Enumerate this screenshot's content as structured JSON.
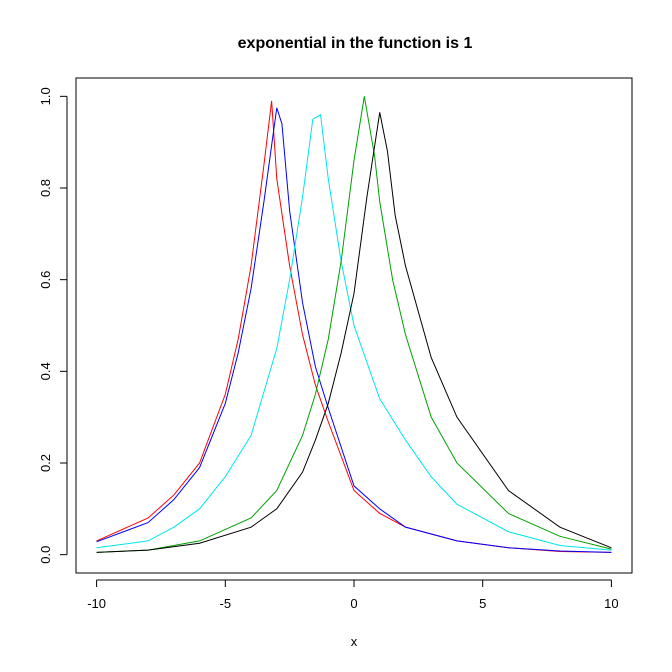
{
  "chart_data": {
    "type": "line",
    "title": "exponential in the function is 1",
    "xlabel": "x",
    "ylabel": "",
    "xlim": [
      -10.8,
      10.8
    ],
    "ylim": [
      -0.04,
      1.04
    ],
    "xticks": [
      -10,
      -5,
      0,
      5,
      10
    ],
    "xtick_labels": [
      "-10",
      "-5",
      "0",
      "5",
      "10"
    ],
    "yticks": [
      0.0,
      0.2,
      0.4,
      0.6,
      0.8,
      1.0
    ],
    "ytick_labels": [
      "0.0",
      "0.2",
      "0.4",
      "0.6",
      "0.8",
      "1.0"
    ],
    "grid": false,
    "legend": "none",
    "series": [
      {
        "color": "#ff0000",
        "x": [
          -10,
          -8,
          -7,
          -6,
          -5,
          -4.5,
          -4,
          -3.5,
          -3.2,
          -3,
          -2.5,
          -2,
          -1.5,
          -1,
          0,
          1,
          2,
          4,
          6,
          8,
          10
        ],
        "y": [
          0.03,
          0.08,
          0.13,
          0.2,
          0.35,
          0.47,
          0.63,
          0.85,
          0.99,
          0.82,
          0.63,
          0.48,
          0.37,
          0.29,
          0.14,
          0.09,
          0.06,
          0.03,
          0.015,
          0.007,
          0.005
        ]
      },
      {
        "color": "#0000ff",
        "x": [
          -10,
          -8,
          -7,
          -6,
          -5,
          -4.5,
          -4,
          -3.5,
          -3,
          -2.8,
          -2.5,
          -2,
          -1.5,
          -1,
          0,
          1,
          2,
          4,
          6,
          8,
          10
        ],
        "y": [
          0.028,
          0.07,
          0.12,
          0.19,
          0.33,
          0.44,
          0.58,
          0.77,
          0.975,
          0.94,
          0.75,
          0.55,
          0.41,
          0.32,
          0.15,
          0.1,
          0.06,
          0.03,
          0.015,
          0.008,
          0.005
        ]
      },
      {
        "color": "#00e5ee",
        "x": [
          -10,
          -8,
          -7,
          -6,
          -5,
          -4,
          -3,
          -2.5,
          -2,
          -1.6,
          -1.3,
          -1,
          -0.5,
          0,
          1,
          2,
          3,
          4,
          6,
          8,
          10
        ],
        "y": [
          0.015,
          0.03,
          0.06,
          0.1,
          0.17,
          0.26,
          0.45,
          0.6,
          0.78,
          0.95,
          0.96,
          0.82,
          0.64,
          0.5,
          0.34,
          0.25,
          0.17,
          0.11,
          0.05,
          0.02,
          0.01
        ]
      },
      {
        "color": "#00a000",
        "x": [
          -10,
          -8,
          -6,
          -4,
          -3,
          -2,
          -1.5,
          -1,
          -0.5,
          0,
          0.4,
          0.8,
          1,
          1.5,
          2,
          3,
          4,
          6,
          8,
          10
        ],
        "y": [
          0.005,
          0.01,
          0.03,
          0.08,
          0.14,
          0.26,
          0.35,
          0.47,
          0.64,
          0.86,
          1.0,
          0.87,
          0.77,
          0.6,
          0.48,
          0.3,
          0.2,
          0.09,
          0.04,
          0.012
        ]
      },
      {
        "color": "#000000",
        "x": [
          -10,
          -8,
          -6,
          -4,
          -3,
          -2,
          -1.5,
          -1,
          -0.5,
          0,
          0.5,
          1,
          1.3,
          1.6,
          2,
          3,
          4,
          6,
          8,
          10
        ],
        "y": [
          0.005,
          0.01,
          0.025,
          0.06,
          0.1,
          0.18,
          0.25,
          0.33,
          0.44,
          0.57,
          0.78,
          0.965,
          0.88,
          0.74,
          0.63,
          0.43,
          0.3,
          0.14,
          0.06,
          0.015
        ]
      }
    ]
  }
}
